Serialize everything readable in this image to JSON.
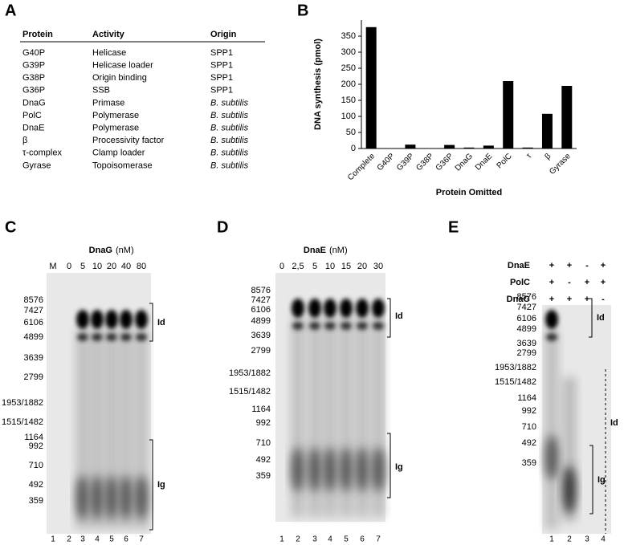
{
  "panel_a": {
    "letter": "A",
    "columns": [
      "Protein",
      "Activity",
      "Origin"
    ],
    "rows": [
      [
        "G40P",
        "Helicase",
        "SPP1"
      ],
      [
        "G39P",
        "Helicase loader",
        "SPP1"
      ],
      [
        "G38P",
        "Origin binding",
        "SPP1"
      ],
      [
        "G36P",
        "SSB",
        "SPP1"
      ],
      [
        "DnaG",
        "Primase",
        "B. subtilis"
      ],
      [
        "PolC",
        "Polymerase",
        "B. subtilis"
      ],
      [
        "DnaE",
        "Polymerase",
        "B. subtilis"
      ],
      [
        "β",
        "Processivity factor",
        "B. subtilis"
      ],
      [
        "τ-complex",
        "Clamp loader",
        "B. subtilis"
      ],
      [
        "Gyrase",
        "Topoisomerase",
        "B. subtilis"
      ]
    ]
  },
  "chart_data": {
    "type": "bar",
    "letter": "B",
    "ylabel": "DNA synthesis (pmol)",
    "xlabel": "Protein Omitted",
    "categories": [
      "Complete",
      "G40P",
      "G39P",
      "G38P",
      "G36P",
      "DnaG",
      "DnaE",
      "PolC",
      "τ",
      "β",
      "Gyrase"
    ],
    "values": [
      378,
      0,
      12,
      0,
      11,
      3,
      9,
      210,
      3,
      108,
      195
    ],
    "color": "#000000",
    "ylim": [
      0,
      400
    ],
    "yticks": [
      0,
      50,
      100,
      150,
      200,
      250,
      300,
      350
    ]
  },
  "panel_c": {
    "letter": "C",
    "protein": "DnaG",
    "unit": "(nM)",
    "lanes": [
      "M",
      0,
      5,
      10,
      20,
      40,
      80
    ],
    "numbers": [
      1,
      2,
      3,
      4,
      5,
      6,
      7
    ],
    "markers": [
      8576,
      7427,
      6106,
      4899,
      3639,
      2799,
      "1953/1882",
      "1515/1482",
      1164,
      992,
      710,
      492,
      359
    ],
    "brackets": [
      "Id",
      "Ig"
    ]
  },
  "panel_d": {
    "letter": "D",
    "protein": "DnaE",
    "unit": "(nM)",
    "lanes": [
      0,
      "2,5",
      5,
      10,
      15,
      20,
      30
    ],
    "numbers": [
      1,
      2,
      3,
      4,
      5,
      6,
      7
    ],
    "markers": [
      8576,
      7427,
      6106,
      4899,
      3639,
      2799,
      "1953/1882",
      "1515/1482",
      1164,
      992,
      710,
      492,
      359
    ],
    "brackets": [
      "Id",
      "Ig"
    ]
  },
  "panel_e": {
    "letter": "E",
    "rows": [
      {
        "label": "DnaE",
        "signs": [
          "+",
          "+",
          "-",
          "+"
        ]
      },
      {
        "label": "PolC",
        "signs": [
          "+",
          "-",
          "+",
          "+"
        ]
      },
      {
        "label": "DnaG",
        "signs": [
          "+",
          "+",
          "+",
          "-"
        ]
      }
    ],
    "numbers": [
      1,
      2,
      3,
      4
    ],
    "markers": [
      8576,
      7427,
      6106,
      4899,
      3639,
      2799,
      "1953/1882",
      "1515/1482",
      1164,
      992,
      710,
      492,
      359
    ],
    "brackets": [
      "Id",
      "Ig",
      "Id"
    ]
  }
}
